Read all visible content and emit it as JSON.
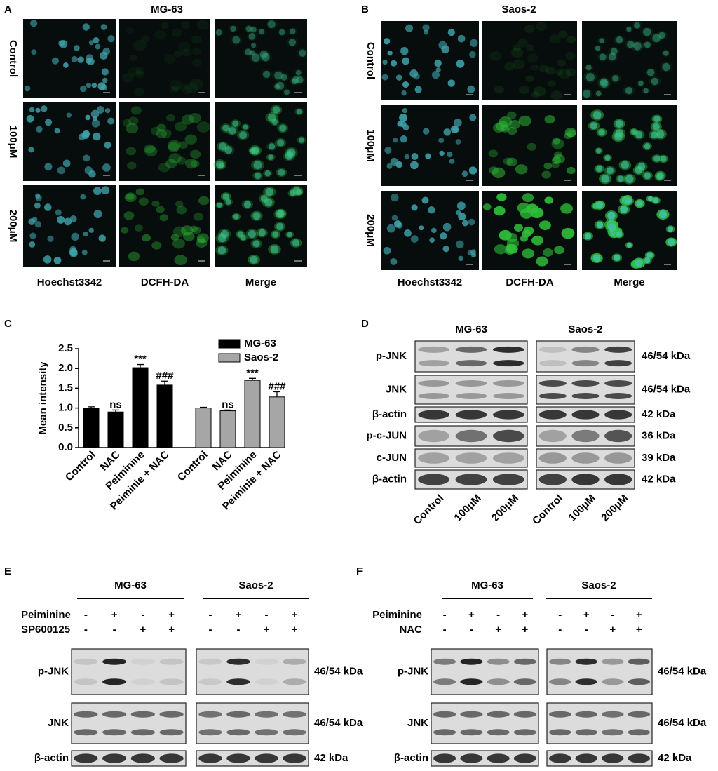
{
  "panels": {
    "A": {
      "label": "A",
      "title": "MG-63",
      "rows": [
        "Control",
        "100μM",
        "200μM"
      ],
      "columns": [
        "Hoechst3342",
        "DCFH-DA",
        "Merge"
      ]
    },
    "B": {
      "label": "B",
      "title": "Saos-2",
      "rows": [
        "Control",
        "100μM",
        "200μM"
      ],
      "columns": [
        "Hoechst3342",
        "DCFH-DA",
        "Merge"
      ]
    },
    "C": {
      "label": "C"
    },
    "D": {
      "label": "D",
      "groups": [
        "MG-63",
        "Saos-2"
      ],
      "rows": [
        {
          "name": "p-JNK",
          "size": "46/54 kDa"
        },
        {
          "name": "JNK",
          "size": "46/54 kDa"
        },
        {
          "name": "β-actin",
          "size": "42 kDa"
        },
        {
          "name": "p-c-JUN",
          "size": "36 kDa"
        },
        {
          "name": "c-JUN",
          "size": "39 kDa"
        },
        {
          "name": "β-actin",
          "size": "42 kDa"
        }
      ],
      "lanes": [
        "Control",
        "100μM",
        "200μM"
      ]
    },
    "E": {
      "label": "E",
      "groups": [
        "MG-63",
        "Saos-2"
      ],
      "treatments": [
        {
          "name": "Peiminine",
          "signs": [
            "-",
            "+",
            "-",
            "+"
          ]
        },
        {
          "name": "SP600125",
          "signs": [
            "-",
            "-",
            "+",
            "+"
          ]
        }
      ],
      "rows": [
        {
          "name": "p-JNK",
          "size": "46/54 kDa"
        },
        {
          "name": "JNK",
          "size": "46/54 kDa"
        },
        {
          "name": "β-actin",
          "size": "42 kDa"
        }
      ]
    },
    "F": {
      "label": "F",
      "groups": [
        "MG-63",
        "Saos-2"
      ],
      "treatments": [
        {
          "name": "Peiminine",
          "signs": [
            "-",
            "+",
            "-",
            "+"
          ]
        },
        {
          "name": "NAC",
          "signs": [
            "-",
            "-",
            "+",
            "+"
          ]
        }
      ],
      "rows": [
        {
          "name": "p-JNK",
          "size": "46/54 kDa"
        },
        {
          "name": "JNK",
          "size": "46/54 kDa"
        },
        {
          "name": "β-actin",
          "size": "42 kDa"
        }
      ]
    }
  },
  "chart_data": {
    "type": "bar",
    "y_label": "Mean intensity",
    "categories": [
      "Control",
      "NAC",
      "Peiminine",
      "Peiminie + NAC"
    ],
    "series": [
      {
        "name": "MG-63",
        "color": "#000000",
        "values": [
          1.0,
          0.9,
          2.02,
          1.58
        ],
        "errors": [
          0.03,
          0.05,
          0.08,
          0.1
        ],
        "annotations": [
          null,
          "ns",
          "***",
          "###"
        ]
      },
      {
        "name": "Saos-2",
        "color": "#a6a6a6",
        "values": [
          1.0,
          0.93,
          1.7,
          1.28
        ],
        "errors": [
          0.02,
          0.02,
          0.05,
          0.13
        ],
        "annotations": [
          null,
          "ns",
          "***",
          "###"
        ]
      }
    ],
    "ylim": [
      0,
      2.5
    ],
    "yticks": [
      {
        "value": 0,
        "label": "0.0"
      },
      0.5,
      {
        "value": 1,
        "label": "1.0"
      },
      1.5,
      {
        "value": 2,
        "label": "2.0"
      },
      2.5
    ],
    "legend": "upper right"
  }
}
